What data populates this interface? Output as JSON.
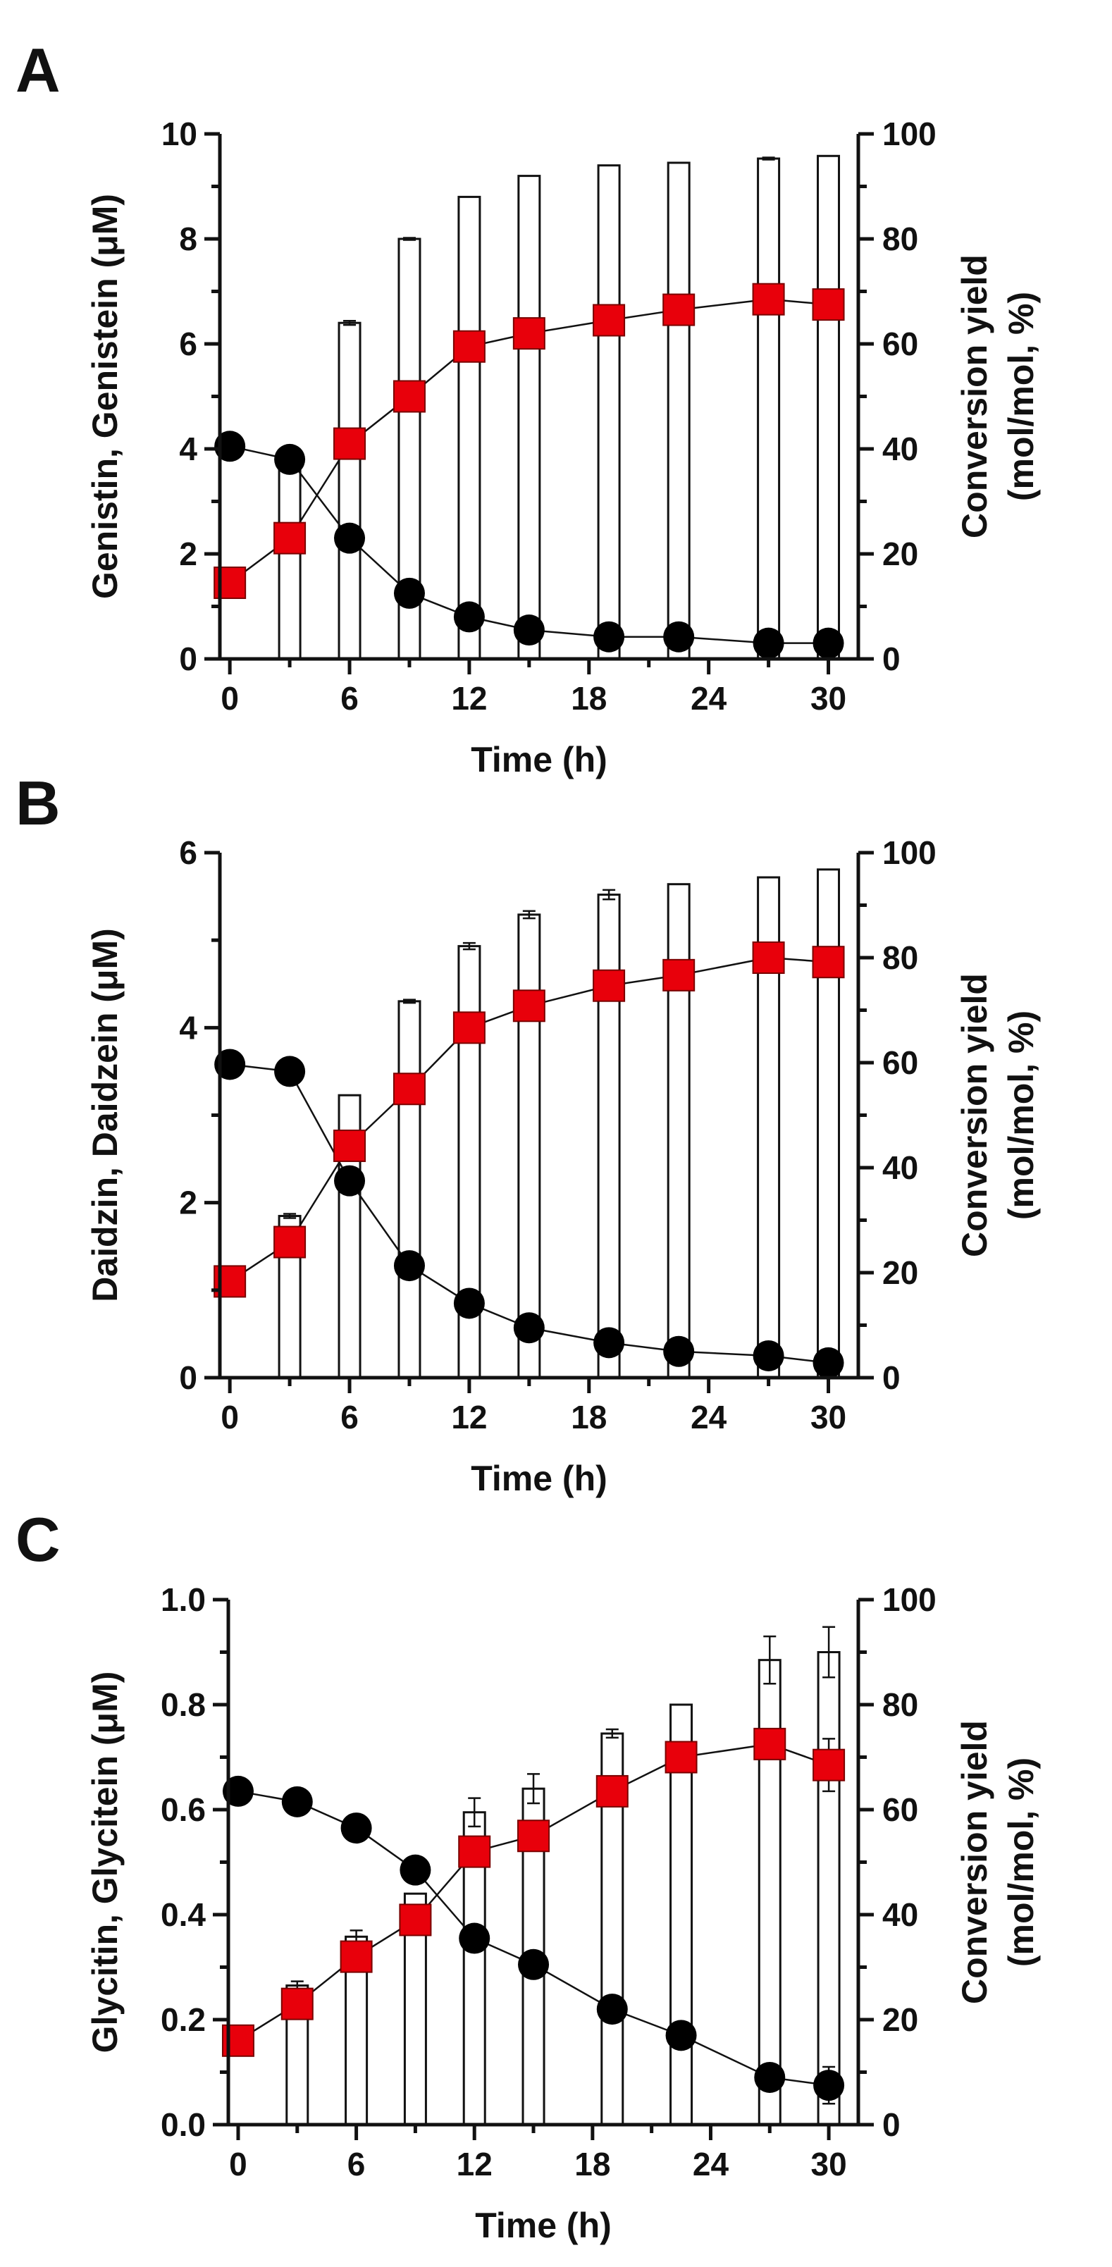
{
  "colors": {
    "circle": "#000000",
    "square": "#e8000b",
    "bar_fill": "#ffffff",
    "axis": "#111111"
  },
  "chart_data": [
    {
      "panel": "A",
      "type": "bar",
      "title": "",
      "xlabel": "Time (h)",
      "ylabel": "Genistin, Genistein (μM)",
      "y2label_line1": "Conversion yield",
      "y2label_line2": "(mol/mol, %)",
      "xlim": [
        -0.5,
        31.5
      ],
      "ylim": [
        0,
        10
      ],
      "y2lim": [
        0,
        100
      ],
      "xticks": [
        0,
        6,
        12,
        18,
        24,
        30
      ],
      "xtick_labels": [
        "0",
        "6",
        "12",
        "18",
        "24",
        "30"
      ],
      "yticks": [
        0,
        2,
        4,
        6,
        8,
        10
      ],
      "ytick_labels": [
        "0",
        "2",
        "4",
        "6",
        "8",
        "10"
      ],
      "y2ticks": [
        0,
        20,
        40,
        60,
        80,
        100
      ],
      "y2tick_labels": [
        "0",
        "20",
        "40",
        "60",
        "80",
        "100"
      ],
      "x": [
        0,
        3,
        6,
        9,
        12,
        15,
        19,
        22.5,
        27,
        30
      ],
      "series": [
        {
          "name": "Conversion yield",
          "type": "bar",
          "axis": "right",
          "x": [
            3,
            6,
            9,
            12,
            15,
            19,
            22.5,
            27,
            30
          ],
          "values": [
            38,
            64,
            80,
            88,
            92,
            94,
            94.5,
            95.3,
            95.8
          ],
          "errors": [
            0,
            0.4,
            0.2,
            0,
            0,
            0,
            0,
            0.2,
            0
          ]
        },
        {
          "name": "Genistin",
          "type": "line",
          "marker": "circle",
          "axis": "left",
          "x": [
            0,
            3,
            6,
            9,
            12,
            15,
            19,
            22.5,
            27,
            30
          ],
          "values": [
            4.05,
            3.8,
            2.3,
            1.25,
            0.8,
            0.55,
            0.42,
            0.42,
            0.3,
            0.3
          ],
          "errors": [
            0,
            0,
            0,
            0,
            0,
            0,
            0,
            0,
            0,
            0
          ]
        },
        {
          "name": "Genistein",
          "type": "line",
          "marker": "square",
          "axis": "left",
          "x": [
            0,
            3,
            6,
            9,
            12,
            15,
            19,
            22.5,
            27,
            30
          ],
          "values": [
            1.45,
            2.3,
            4.1,
            5.0,
            5.95,
            6.2,
            6.45,
            6.65,
            6.85,
            6.75
          ],
          "errors": [
            0,
            0,
            0,
            0,
            0,
            0,
            0,
            0,
            0,
            0
          ]
        }
      ]
    },
    {
      "panel": "B",
      "type": "bar",
      "title": "",
      "xlabel": "Time (h)",
      "ylabel": "Daidzin, Daidzein (μM)",
      "y2label_line1": "Conversion yield",
      "y2label_line2": "(mol/mol, %)",
      "xlim": [
        -0.5,
        31.5
      ],
      "ylim": [
        0,
        6
      ],
      "y2lim": [
        0,
        100
      ],
      "xticks": [
        0,
        6,
        12,
        18,
        24,
        30
      ],
      "xtick_labels": [
        "0",
        "6",
        "12",
        "18",
        "24",
        "30"
      ],
      "yticks": [
        0,
        2,
        4,
        6
      ],
      "ytick_labels": [
        "0",
        "2",
        "4",
        "6"
      ],
      "y2ticks": [
        0,
        20,
        40,
        60,
        80,
        100
      ],
      "y2tick_labels": [
        "0",
        "20",
        "40",
        "60",
        "80",
        "100"
      ],
      "x": [
        0,
        3,
        6,
        9,
        12,
        15,
        19,
        22.5,
        27,
        30
      ],
      "series": [
        {
          "name": "Conversion yield",
          "type": "bar",
          "axis": "right",
          "x": [
            3,
            6,
            9,
            12,
            15,
            19,
            22.5,
            27,
            30
          ],
          "values": [
            30.8,
            53.8,
            71.7,
            82.2,
            88.2,
            92,
            94,
            95.3,
            96.8
          ],
          "errors": [
            0.4,
            0,
            0.3,
            0.6,
            0.7,
            0.9,
            0,
            0,
            0
          ]
        },
        {
          "name": "Daidzin",
          "type": "line",
          "marker": "circle",
          "axis": "left",
          "x": [
            0,
            3,
            6,
            9,
            12,
            15,
            19,
            22.5,
            27,
            30
          ],
          "values": [
            3.58,
            3.5,
            2.25,
            1.28,
            0.85,
            0.57,
            0.4,
            0.3,
            0.25,
            0.17
          ],
          "errors": [
            0,
            0,
            0,
            0,
            0,
            0,
            0,
            0,
            0,
            0
          ]
        },
        {
          "name": "Daidzein",
          "type": "line",
          "marker": "square",
          "axis": "left",
          "x": [
            0,
            3,
            6,
            9,
            12,
            15,
            19,
            22.5,
            27,
            30
          ],
          "values": [
            1.1,
            1.55,
            2.65,
            3.3,
            4.0,
            4.25,
            4.48,
            4.6,
            4.8,
            4.75
          ],
          "errors": [
            0,
            0,
            0,
            0,
            0,
            0,
            0,
            0,
            0,
            0
          ]
        }
      ]
    },
    {
      "panel": "C",
      "type": "bar",
      "title": "",
      "xlabel": "Time (h)",
      "ylabel": "Glycitin, Glycitein (μM)",
      "y2label_line1": "Conversion yield",
      "y2label_line2": "(mol/mol, %)",
      "xlim": [
        -0.5,
        31.5
      ],
      "ylim": [
        0,
        1.0
      ],
      "y2lim": [
        0,
        100
      ],
      "xticks": [
        0,
        6,
        12,
        18,
        24,
        30
      ],
      "xtick_labels": [
        "0",
        "6",
        "12",
        "18",
        "24",
        "30"
      ],
      "yticks": [
        0,
        0.2,
        0.4,
        0.6,
        0.8,
        1.0
      ],
      "ytick_labels": [
        "0.0",
        "0.2",
        "0.4",
        "0.6",
        "0.8",
        "1.0"
      ],
      "y2ticks": [
        0,
        20,
        40,
        60,
        80,
        100
      ],
      "y2tick_labels": [
        "0",
        "20",
        "40",
        "60",
        "80",
        "100"
      ],
      "x": [
        0,
        3,
        6,
        9,
        12,
        15,
        19,
        22.5,
        27,
        30
      ],
      "series": [
        {
          "name": "Conversion yield",
          "type": "bar",
          "axis": "right",
          "x": [
            3,
            6,
            9,
            12,
            15,
            19,
            22.5,
            27,
            30
          ],
          "values": [
            26.5,
            35.8,
            44,
            59.5,
            64,
            74.5,
            80,
            88.5,
            90
          ],
          "errors": [
            0.8,
            1.2,
            0,
            2.7,
            2.8,
            0.8,
            0,
            4.5,
            4.8
          ]
        },
        {
          "name": "Glycitin",
          "type": "line",
          "marker": "circle",
          "axis": "left",
          "x": [
            0,
            3,
            6,
            9,
            12,
            15,
            19,
            22.5,
            27,
            30
          ],
          "values": [
            0.635,
            0.615,
            0.565,
            0.485,
            0.355,
            0.305,
            0.22,
            0.17,
            0.09,
            0.075
          ],
          "errors": [
            0,
            0,
            0,
            0,
            0,
            0,
            0,
            0,
            0,
            0.035
          ]
        },
        {
          "name": "Glycitein",
          "type": "line",
          "marker": "square",
          "axis": "left",
          "x": [
            0,
            3,
            6,
            9,
            12,
            15,
            19,
            22.5,
            27,
            30
          ],
          "values": [
            0.16,
            0.23,
            0.32,
            0.39,
            0.52,
            0.55,
            0.635,
            0.7,
            0.725,
            0.685
          ],
          "errors": [
            0,
            0,
            0,
            0,
            0,
            0,
            0,
            0,
            0,
            0.05
          ]
        }
      ]
    }
  ]
}
